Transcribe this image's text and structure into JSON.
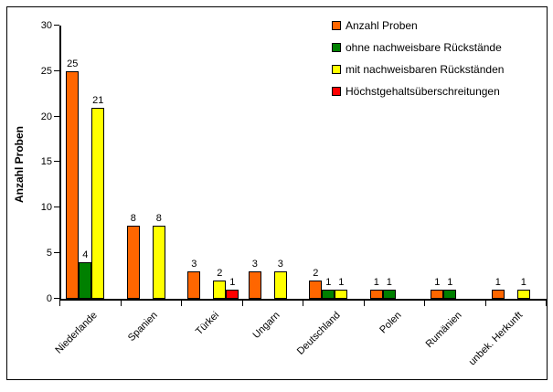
{
  "chart_data": {
    "type": "bar",
    "title": "",
    "xlabel": "",
    "ylabel": "Anzahl Proben",
    "ylim": [
      0,
      30
    ],
    "yticks": [
      0,
      5,
      10,
      15,
      20,
      25,
      30
    ],
    "grid": false,
    "legend_position": "top-right",
    "data_labels": true,
    "categories": [
      "Niederlande",
      "Spanien",
      "Türkei",
      "Ungarn",
      "Deutschland",
      "Polen",
      "Rumänien",
      "unbek. Herkunft"
    ],
    "series": [
      {
        "name": "Anzahl Proben",
        "color": "#FF6600",
        "values": [
          25,
          8,
          3,
          3,
          2,
          1,
          1,
          1
        ]
      },
      {
        "name": "ohne nachweisbare Rückstände",
        "color": "#008000",
        "values": [
          4,
          0,
          0,
          0,
          1,
          1,
          1,
          0
        ]
      },
      {
        "name": "mit nachweisbaren Rückständen",
        "color": "#FFFF00",
        "values": [
          21,
          8,
          2,
          3,
          1,
          0,
          0,
          1
        ]
      },
      {
        "name": "Höchstgehaltsüberschreitungen",
        "color": "#FF0000",
        "values": [
          0,
          0,
          1,
          0,
          0,
          0,
          0,
          0
        ]
      }
    ]
  }
}
